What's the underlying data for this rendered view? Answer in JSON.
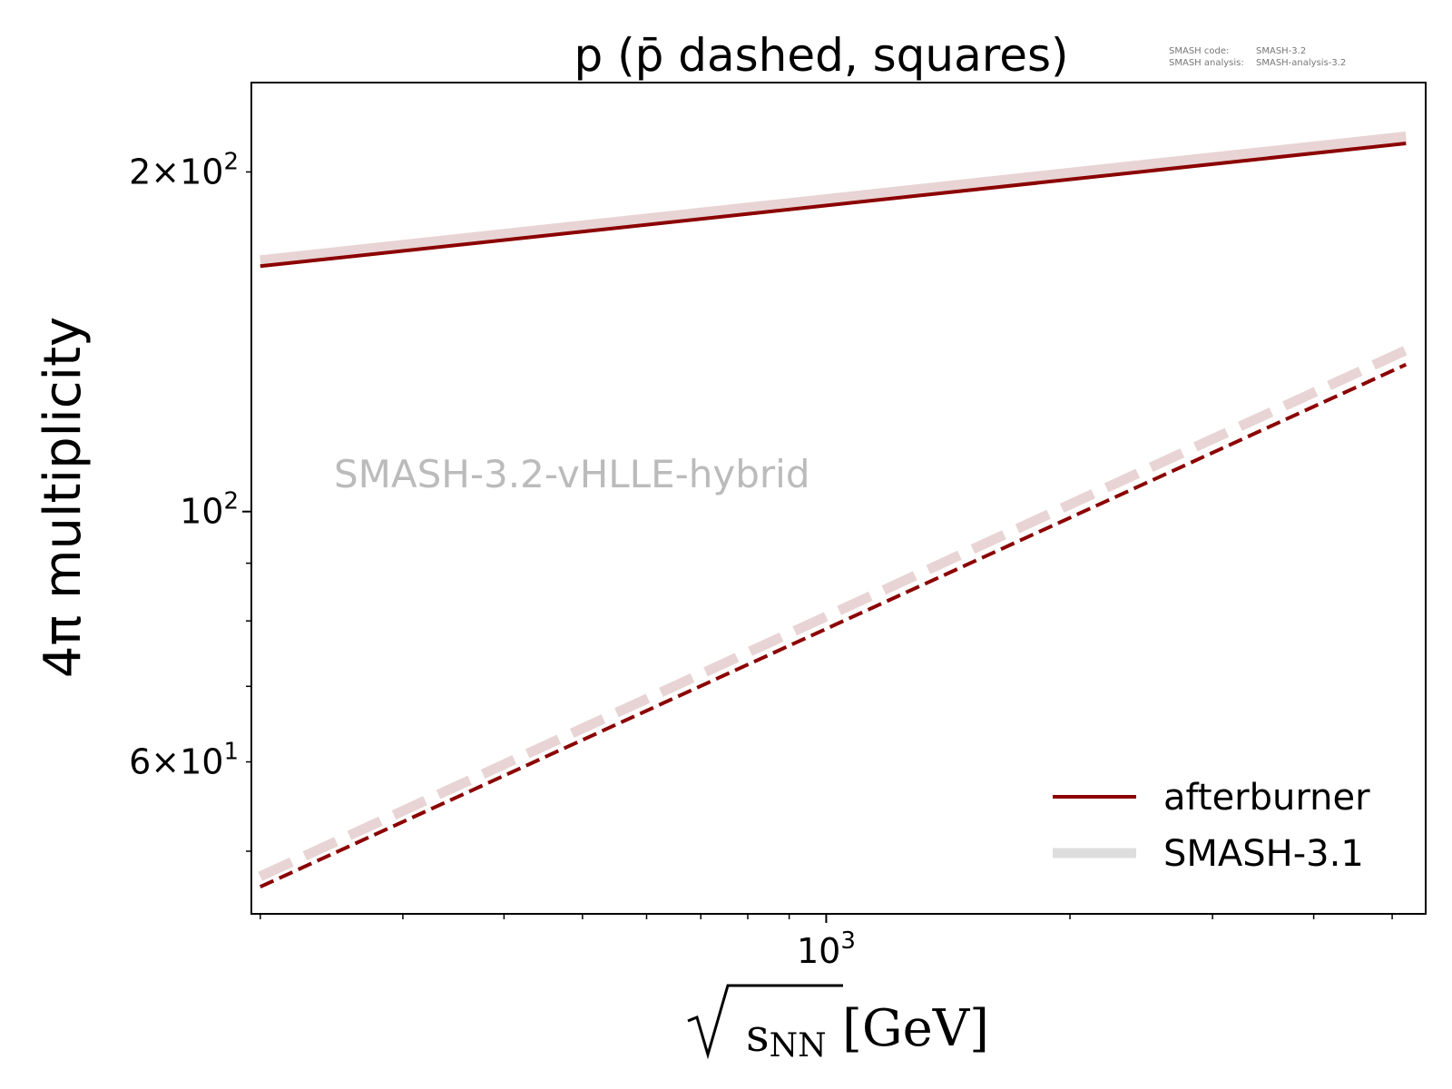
{
  "meta_text": {
    "code_label": "SMASH code:",
    "code_value": "SMASH-3.2",
    "analysis_label": "SMASH analysis:",
    "analysis_value": "SMASH-analysis-3.2"
  },
  "watermark": "SMASH-3.2-vHLLE-hybrid",
  "colors": {
    "afterburner": "#8b0000",
    "smash31": "#e8d4d4",
    "legend_smash31": "#dedede",
    "watermark": "#bbbbbb"
  },
  "chart_data": {
    "type": "line",
    "title": "p (p̄ dashed, squares)",
    "xlabel": "√sNN [GeV]",
    "xlabel_parts": {
      "radicand": "s",
      "subscript": "NN",
      "unit": "[GeV]"
    },
    "ylabel": "4π multiplicity",
    "xscale": "log",
    "yscale": "log",
    "xlim": [
      195,
      5500
    ],
    "ylim": [
      44,
      240
    ],
    "x_major_ticks": [
      {
        "value": 1000,
        "base": "10",
        "exp": "3"
      }
    ],
    "x_minor_ticks": [
      200,
      300,
      400,
      500,
      600,
      700,
      800,
      900,
      2000,
      3000,
      4000,
      5000
    ],
    "y_major_ticks": [
      {
        "value": 100,
        "base": "10",
        "exp": "2"
      }
    ],
    "y_minor_ticks": [
      {
        "value": 50,
        "label": null
      },
      {
        "value": 60,
        "label": {
          "mant": "6",
          "base": "10",
          "exp": "1"
        }
      },
      {
        "value": 70,
        "label": null
      },
      {
        "value": 80,
        "label": null
      },
      {
        "value": 90,
        "label": null
      },
      {
        "value": 200,
        "label": {
          "mant": "2",
          "base": "10",
          "exp": "2"
        }
      }
    ],
    "series": [
      {
        "name": "afterburner",
        "style": "solid",
        "color": "#8b0000",
        "x": [
          200,
          5200
        ],
        "y": [
          165,
          212
        ]
      },
      {
        "name": "afterburner",
        "style": "dashed",
        "color": "#8b0000",
        "x": [
          200,
          5200
        ],
        "y": [
          46.5,
          135
        ]
      },
      {
        "name": "SMASH-3.1",
        "style": "solid",
        "color": "#e8d4d4",
        "x": [
          200,
          5200
        ],
        "y": [
          167,
          215
        ]
      },
      {
        "name": "SMASH-3.1",
        "style": "dashed",
        "color": "#e8d4d4",
        "x": [
          200,
          5200
        ],
        "y": [
          47.5,
          139
        ]
      }
    ],
    "legend": {
      "placement": "lower-right",
      "entries": [
        {
          "label": "afterburner",
          "color": "#8b0000"
        },
        {
          "label": "SMASH-3.1",
          "color": "#dedede"
        }
      ]
    },
    "grid": false
  }
}
